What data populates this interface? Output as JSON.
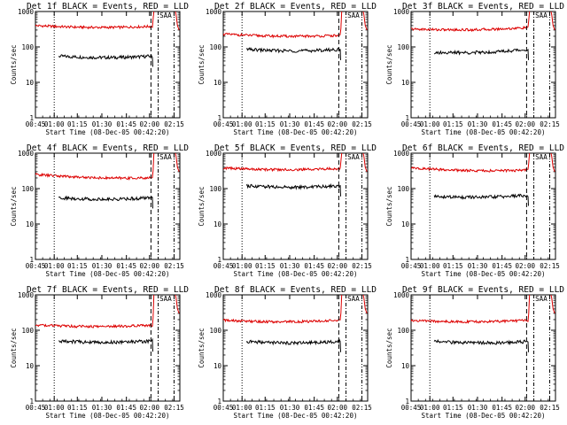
{
  "figure": {
    "colors": {
      "events": "#000000",
      "lld": "#dd0000",
      "axes": "#000000",
      "background": "#ffffff"
    },
    "x_tick_labels": [
      "00:45",
      "01:00",
      "01:15",
      "01:30",
      "01:45",
      "02:00",
      "02:15"
    ],
    "y_tick_labels": [
      "1",
      "10",
      "100",
      "1000"
    ],
    "xlabel": "Start Time (08-Dec-05 00:42:20)",
    "ylabel": "Counts/sec"
  },
  "chart_data": [
    {
      "type": "line",
      "title": "Det 1f BLACK = Events, RED = LLD",
      "xlabel": "Start Time (08-Dec-05 00:42:20)",
      "ylabel": "Counts/sec",
      "x_range_minutes_after_start": [
        0,
        100
      ],
      "yscale": "log",
      "ylim": [
        1,
        1000
      ],
      "series": [
        {
          "name": "Events",
          "color": "#000000",
          "x_start": 16,
          "x_end": 81,
          "level_start": 55,
          "level_end": 55
        },
        {
          "name": "LLD",
          "color": "#dd0000",
          "x_start": 0,
          "x_end": 81,
          "level_start": 400,
          "level_end": 380,
          "rise_to": 1000
        }
      ],
      "markers": [
        {
          "style": "dotted",
          "x": 13
        },
        {
          "style": "long-dash",
          "x": 80
        },
        {
          "style": "dash-dot",
          "x": 85
        },
        {
          "style": "dash-dot-dot",
          "x": 96
        }
      ],
      "saa_label": "SAA"
    },
    {
      "type": "line",
      "title": "Det 2f BLACK = Events, RED = LLD",
      "xlabel": "Start Time (08-Dec-05 00:42:20)",
      "ylabel": "Counts/sec",
      "x_range_minutes_after_start": [
        0,
        100
      ],
      "yscale": "log",
      "ylim": [
        1,
        1000
      ],
      "series": [
        {
          "name": "Events",
          "color": "#000000",
          "x_start": 16,
          "x_end": 81,
          "level_start": 85,
          "level_end": 85
        },
        {
          "name": "LLD",
          "color": "#dd0000",
          "x_start": 0,
          "x_end": 81,
          "level_start": 230,
          "level_end": 210,
          "rise_to": 1000
        }
      ],
      "markers": [
        {
          "style": "dotted",
          "x": 13
        },
        {
          "style": "long-dash",
          "x": 80
        },
        {
          "style": "dash-dot",
          "x": 85
        },
        {
          "style": "dash-dot-dot",
          "x": 96
        }
      ],
      "saa_label": "SAA"
    },
    {
      "type": "line",
      "title": "Det 3f BLACK = Events, RED = LLD",
      "xlabel": "Start Time (08-Dec-05 00:42:20)",
      "ylabel": "Counts/sec",
      "x_range_minutes_after_start": [
        0,
        100
      ],
      "yscale": "log",
      "ylim": [
        1,
        1000
      ],
      "series": [
        {
          "name": "Events",
          "color": "#000000",
          "x_start": 16,
          "x_end": 81,
          "level_start": 70,
          "level_end": 85
        },
        {
          "name": "LLD",
          "color": "#dd0000",
          "x_start": 0,
          "x_end": 81,
          "level_start": 320,
          "level_end": 350,
          "rise_to": 1000
        }
      ],
      "markers": [
        {
          "style": "dotted",
          "x": 13
        },
        {
          "style": "long-dash",
          "x": 80
        },
        {
          "style": "dash-dot",
          "x": 85
        },
        {
          "style": "dash-dot-dot",
          "x": 96
        }
      ],
      "saa_label": "SAA"
    },
    {
      "type": "line",
      "title": "Det 4f BLACK = Events, RED = LLD",
      "xlabel": "Start Time (08-Dec-05 00:42:20)",
      "ylabel": "Counts/sec",
      "x_range_minutes_after_start": [
        0,
        100
      ],
      "yscale": "log",
      "ylim": [
        1,
        1000
      ],
      "series": [
        {
          "name": "Events",
          "color": "#000000",
          "x_start": 16,
          "x_end": 81,
          "level_start": 55,
          "level_end": 55
        },
        {
          "name": "LLD",
          "color": "#dd0000",
          "x_start": 0,
          "x_end": 81,
          "level_start": 250,
          "level_end": 200,
          "rise_to": 1000
        }
      ],
      "markers": [
        {
          "style": "dotted",
          "x": 13
        },
        {
          "style": "long-dash",
          "x": 80
        },
        {
          "style": "dash-dot",
          "x": 85
        },
        {
          "style": "dash-dot-dot",
          "x": 96
        }
      ],
      "saa_label": "SAA"
    },
    {
      "type": "line",
      "title": "Det 5f BLACK = Events, RED = LLD",
      "xlabel": "Start Time (08-Dec-05 00:42:20)",
      "ylabel": "Counts/sec",
      "x_range_minutes_after_start": [
        0,
        100
      ],
      "yscale": "log",
      "ylim": [
        1,
        1000
      ],
      "series": [
        {
          "name": "Events",
          "color": "#000000",
          "x_start": 16,
          "x_end": 81,
          "level_start": 120,
          "level_end": 120
        },
        {
          "name": "LLD",
          "color": "#dd0000",
          "x_start": 0,
          "x_end": 81,
          "level_start": 380,
          "level_end": 370,
          "rise_to": 1000
        }
      ],
      "markers": [
        {
          "style": "dotted",
          "x": 13
        },
        {
          "style": "long-dash",
          "x": 80
        },
        {
          "style": "dash-dot",
          "x": 85
        },
        {
          "style": "dash-dot-dot",
          "x": 96
        }
      ],
      "saa_label": "SAA"
    },
    {
      "type": "line",
      "title": "Det 6f BLACK = Events, RED = LLD",
      "xlabel": "Start Time (08-Dec-05 00:42:20)",
      "ylabel": "Counts/sec",
      "x_range_minutes_after_start": [
        0,
        100
      ],
      "yscale": "log",
      "ylim": [
        1,
        1000
      ],
      "series": [
        {
          "name": "Events",
          "color": "#000000",
          "x_start": 16,
          "x_end": 81,
          "level_start": 60,
          "level_end": 65
        },
        {
          "name": "LLD",
          "color": "#dd0000",
          "x_start": 0,
          "x_end": 81,
          "level_start": 380,
          "level_end": 330,
          "rise_to": 1000
        }
      ],
      "markers": [
        {
          "style": "dotted",
          "x": 13
        },
        {
          "style": "long-dash",
          "x": 80
        },
        {
          "style": "dash-dot",
          "x": 85
        },
        {
          "style": "dash-dot-dot",
          "x": 96
        }
      ],
      "saa_label": "SAA"
    },
    {
      "type": "line",
      "title": "Det 7f BLACK = Events, RED = LLD",
      "xlabel": "Start Time (08-Dec-05 00:42:20)",
      "ylabel": "Counts/sec",
      "x_range_minutes_after_start": [
        0,
        100
      ],
      "yscale": "log",
      "ylim": [
        1,
        1000
      ],
      "series": [
        {
          "name": "Events",
          "color": "#000000",
          "x_start": 16,
          "x_end": 81,
          "level_start": 50,
          "level_end": 50
        },
        {
          "name": "LLD",
          "color": "#dd0000",
          "x_start": 0,
          "x_end": 81,
          "level_start": 140,
          "level_end": 140,
          "rise_to": 1000
        }
      ],
      "markers": [
        {
          "style": "dotted",
          "x": 13
        },
        {
          "style": "long-dash",
          "x": 80
        },
        {
          "style": "dash-dot",
          "x": 85
        },
        {
          "style": "dash-dot-dot",
          "x": 96
        }
      ],
      "saa_label": "SAA"
    },
    {
      "type": "line",
      "title": "Det 8f BLACK = Events, RED = LLD",
      "xlabel": "Start Time (08-Dec-05 00:42:20)",
      "ylabel": "Counts/sec",
      "x_range_minutes_after_start": [
        0,
        100
      ],
      "yscale": "log",
      "ylim": [
        1,
        1000
      ],
      "series": [
        {
          "name": "Events",
          "color": "#000000",
          "x_start": 16,
          "x_end": 81,
          "level_start": 48,
          "level_end": 48
        },
        {
          "name": "LLD",
          "color": "#dd0000",
          "x_start": 0,
          "x_end": 81,
          "level_start": 190,
          "level_end": 190,
          "rise_to": 1000
        }
      ],
      "markers": [
        {
          "style": "dotted",
          "x": 13
        },
        {
          "style": "long-dash",
          "x": 80
        },
        {
          "style": "dash-dot",
          "x": 85
        },
        {
          "style": "dash-dot-dot",
          "x": 96
        }
      ],
      "saa_label": "SAA"
    },
    {
      "type": "line",
      "title": "Det 9f BLACK = Events, RED = LLD",
      "xlabel": "Start Time (08-Dec-05 00:42:20)",
      "ylabel": "Counts/sec",
      "x_range_minutes_after_start": [
        0,
        100
      ],
      "yscale": "log",
      "ylim": [
        1,
        1000
      ],
      "series": [
        {
          "name": "Events",
          "color": "#000000",
          "x_start": 16,
          "x_end": 81,
          "level_start": 48,
          "level_end": 48
        },
        {
          "name": "LLD",
          "color": "#dd0000",
          "x_start": 0,
          "x_end": 81,
          "level_start": 190,
          "level_end": 190,
          "rise_to": 1000
        }
      ],
      "markers": [
        {
          "style": "dotted",
          "x": 13
        },
        {
          "style": "long-dash",
          "x": 80
        },
        {
          "style": "dash-dot",
          "x": 85
        },
        {
          "style": "dash-dot-dot",
          "x": 96
        }
      ],
      "saa_label": "SAA"
    }
  ]
}
